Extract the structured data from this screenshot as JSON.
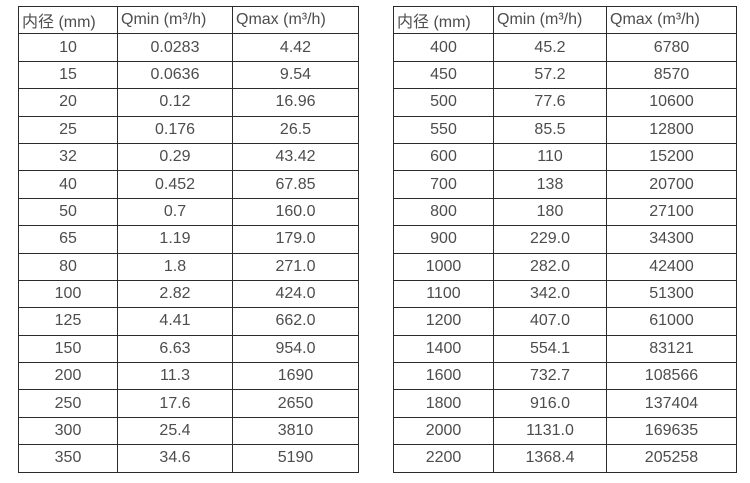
{
  "tables": [
    {
      "name": "flow-spec-table-small-diameters",
      "headers": [
        "内径 (mm)",
        "Qmin (m³/h)",
        "Qmax (m³/h)"
      ],
      "rows": [
        [
          "10",
          "0.0283",
          "4.42"
        ],
        [
          "15",
          "0.0636",
          "9.54"
        ],
        [
          "20",
          "0.12",
          "16.96"
        ],
        [
          "25",
          "0.176",
          "26.5"
        ],
        [
          "32",
          "0.29",
          "43.42"
        ],
        [
          "40",
          "0.452",
          "67.85"
        ],
        [
          "50",
          "0.7",
          "160.0"
        ],
        [
          "65",
          "1.19",
          "179.0"
        ],
        [
          "80",
          "1.8",
          "271.0"
        ],
        [
          "100",
          "2.82",
          "424.0"
        ],
        [
          "125",
          "4.41",
          "662.0"
        ],
        [
          "150",
          "6.63",
          "954.0"
        ],
        [
          "200",
          "11.3",
          "1690"
        ],
        [
          "250",
          "17.6",
          "2650"
        ],
        [
          "300",
          "25.4",
          "3810"
        ],
        [
          "350",
          "34.6",
          "5190"
        ]
      ]
    },
    {
      "name": "flow-spec-table-large-diameters",
      "headers": [
        "内径 (mm)",
        "Qmin (m³/h)",
        "Qmax (m³/h)"
      ],
      "rows": [
        [
          "400",
          "45.2",
          "6780"
        ],
        [
          "450",
          "57.2",
          "8570"
        ],
        [
          "500",
          "77.6",
          "10600"
        ],
        [
          "550",
          "85.5",
          "12800"
        ],
        [
          "600",
          "110",
          "15200"
        ],
        [
          "700",
          "138",
          "20700"
        ],
        [
          "800",
          "180",
          "27100"
        ],
        [
          "900",
          "229.0",
          "34300"
        ],
        [
          "1000",
          "282.0",
          "42400"
        ],
        [
          "1100",
          "342.0",
          "51300"
        ],
        [
          "1200",
          "407.0",
          "61000"
        ],
        [
          "1400",
          "554.1",
          "83121"
        ],
        [
          "1600",
          "732.7",
          "108566"
        ],
        [
          "1800",
          "916.0",
          "137404"
        ],
        [
          "2000",
          "1131.0",
          "169635"
        ],
        [
          "2200",
          "1368.4",
          "205258"
        ]
      ]
    }
  ],
  "colors": {
    "text": "#4d4d4d",
    "border": "#2b2b2b",
    "background": "#ffffff"
  }
}
